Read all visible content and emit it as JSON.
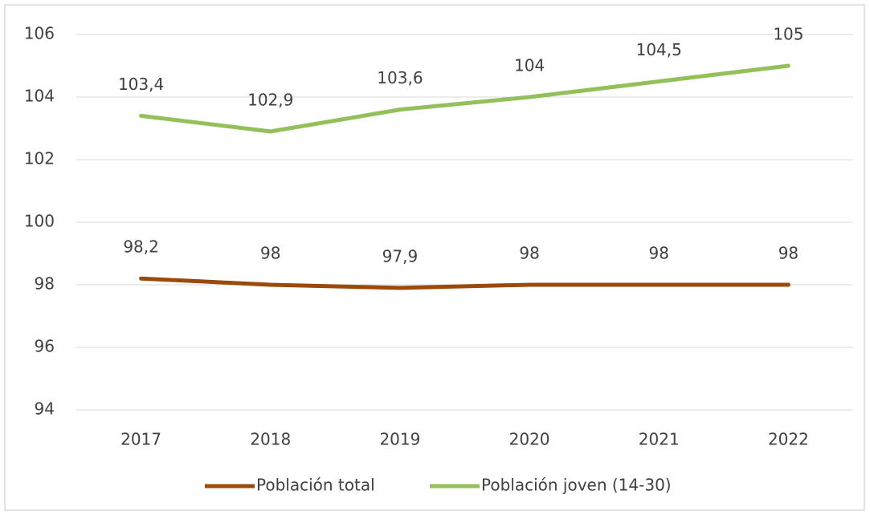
{
  "chart_data": {
    "type": "line",
    "categories": [
      "2017",
      "2018",
      "2019",
      "2020",
      "2021",
      "2022"
    ],
    "series": [
      {
        "name": "Población total",
        "color": "#9c4a0c",
        "values": [
          98.2,
          98,
          97.9,
          98,
          98,
          98
        ],
        "value_labels": [
          "98,2",
          "98",
          "97,9",
          "98",
          "98",
          "98"
        ]
      },
      {
        "name": "Población joven (14-30)",
        "color": "#93c05a",
        "values": [
          103.4,
          102.9,
          103.6,
          104,
          104.5,
          105
        ],
        "value_labels": [
          "103,4",
          "102,9",
          "103,6",
          "104",
          "104,5",
          "105"
        ]
      }
    ],
    "ylim": [
      94,
      106
    ],
    "yticks": [
      94,
      96,
      98,
      100,
      102,
      104,
      106
    ],
    "grid": true,
    "legend": "bottom"
  }
}
